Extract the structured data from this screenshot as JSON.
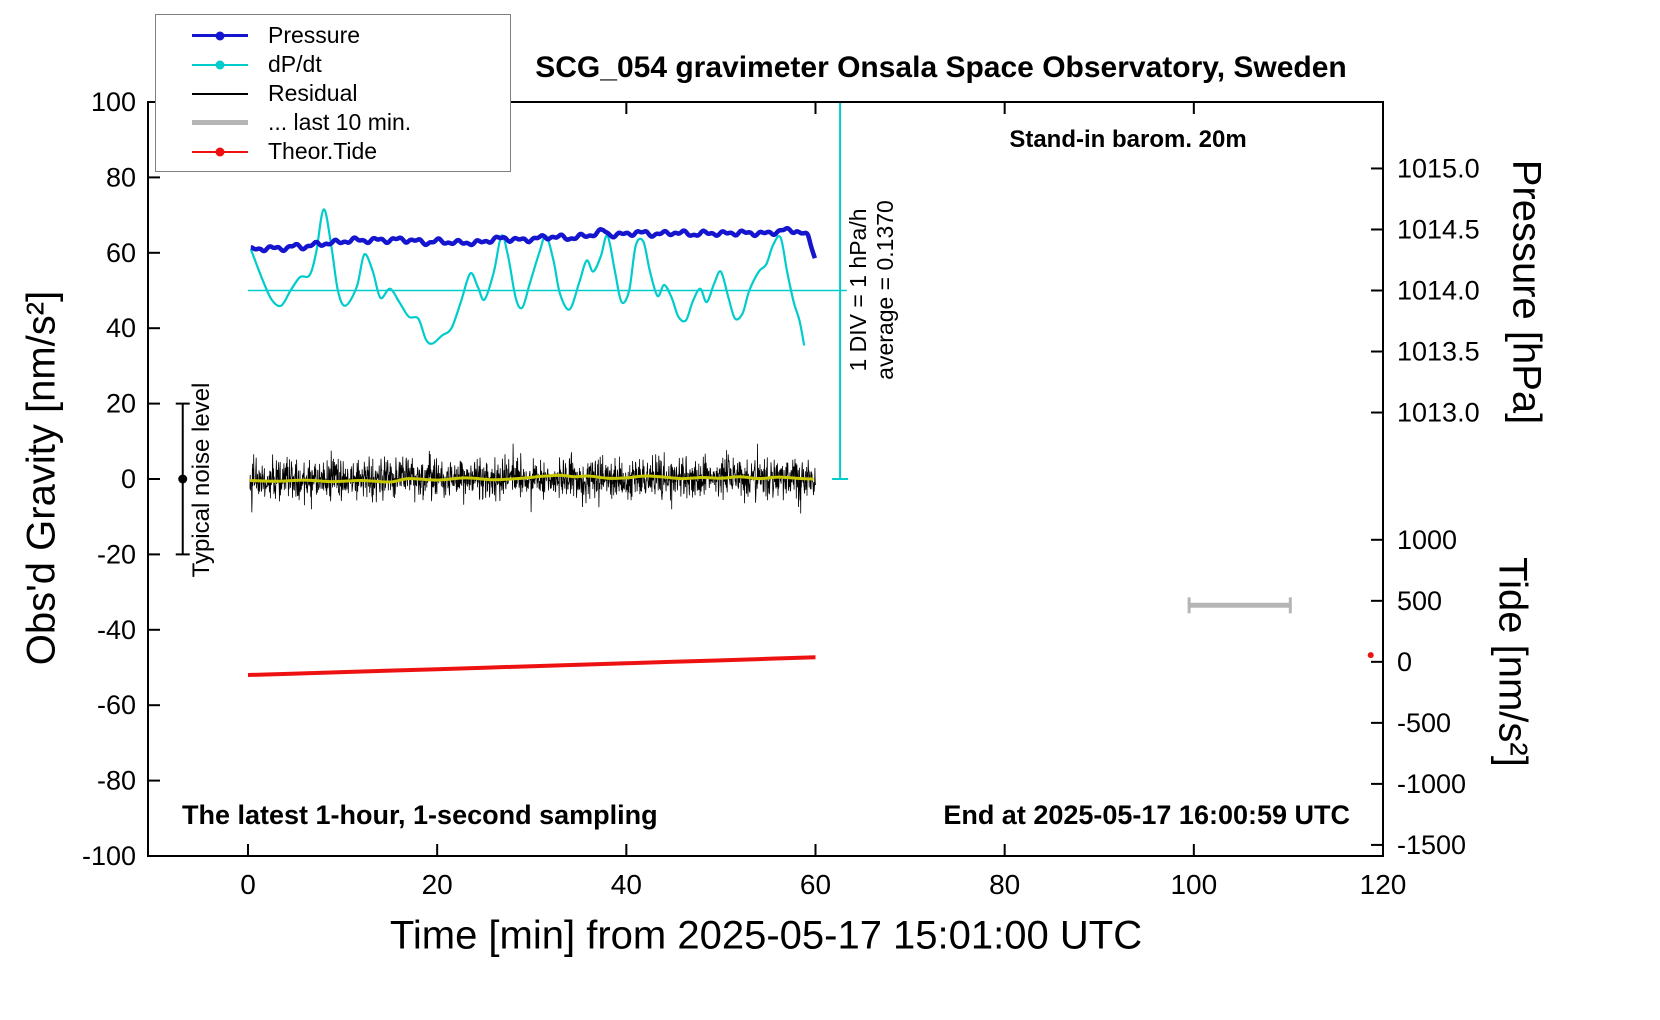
{
  "title": "SCG_054 gravimeter Onsala Space Observatory, Sweden",
  "annotations": {
    "barometer_note": "Stand-in barom. 20m",
    "div_note_line1": "1 DIV = 1 hPa/h",
    "div_note_line2": "average = 0.1370",
    "noise_label": "Typical noise level",
    "sampling_note": "The latest 1-hour, 1-second sampling",
    "end_note": "End at 2025-05-17 16:00:59 UTC"
  },
  "legend": {
    "items": [
      {
        "label": "Pressure",
        "color": "#1515d0",
        "dot": true,
        "thickness": 3
      },
      {
        "label": "dP/dt",
        "color": "#00cccc",
        "dot": true,
        "thickness": 2
      },
      {
        "label": "Residual",
        "color": "#000000",
        "dot": false,
        "thickness": 2
      },
      {
        "label": "... last 10 min.",
        "color": "#b5b5b5",
        "dot": false,
        "thickness": 5
      },
      {
        "label": "Theor.Tide",
        "color": "#ee1111",
        "dot": true,
        "thickness": 2
      }
    ]
  },
  "axes": {
    "x": {
      "label": "Time [min] from 2025-05-17 15:01:00 UTC",
      "ticks": [
        0,
        20,
        40,
        60,
        80,
        100,
        120
      ],
      "min": -10.6,
      "max": 120
    },
    "y_gravity": {
      "label": "Obs'd Gravity [nm/s²]",
      "ticks": [
        100,
        80,
        60,
        40,
        20,
        0,
        -20,
        -40,
        -60,
        -80,
        -100
      ],
      "min": -100,
      "max": 100
    },
    "y_pressure": {
      "label": "Pressure [hPa]",
      "ticks": [
        1015.0,
        1014.5,
        1014.0,
        1013.5,
        1013.0
      ],
      "cal": {
        "hpa_ref": 1014.0,
        "g_ref": 50,
        "g_per_hpa": 32.37
      }
    },
    "y_tide": {
      "label": "Tide [nm/s²]",
      "ticks": [
        1000,
        500,
        0,
        -500,
        -1000,
        -1500
      ],
      "cal": {
        "tide_ref": 0,
        "g_ref": -48.5,
        "g_per_unit": 0.032374
      }
    }
  },
  "chart_data": {
    "type": "line",
    "x_unit": "min",
    "grid": false,
    "series": [
      {
        "name": "pressure",
        "unit": "hPa",
        "color": "#1515d0",
        "points": [
          [
            0.3,
            1014.334
          ],
          [
            1,
            1014.337
          ],
          [
            2,
            1014.349
          ],
          [
            3,
            1014.343
          ],
          [
            4,
            1014.349
          ],
          [
            5,
            1014.364
          ],
          [
            6,
            1014.358
          ],
          [
            7,
            1014.374
          ],
          [
            8,
            1014.386
          ],
          [
            9,
            1014.389
          ],
          [
            10,
            1014.402
          ],
          [
            11,
            1014.411
          ],
          [
            12,
            1014.414
          ],
          [
            13,
            1014.408
          ],
          [
            14,
            1014.417
          ],
          [
            15,
            1014.411
          ],
          [
            16,
            1014.42
          ],
          [
            17,
            1014.414
          ],
          [
            18,
            1014.402
          ],
          [
            19,
            1014.392
          ],
          [
            20,
            1014.405
          ],
          [
            21,
            1014.399
          ],
          [
            22,
            1014.389
          ],
          [
            23,
            1014.395
          ],
          [
            24,
            1014.386
          ],
          [
            25,
            1014.402
          ],
          [
            26,
            1014.42
          ],
          [
            27,
            1014.429
          ],
          [
            28,
            1014.42
          ],
          [
            29,
            1014.411
          ],
          [
            30,
            1014.423
          ],
          [
            31,
            1014.432
          ],
          [
            32,
            1014.442
          ],
          [
            33,
            1014.436
          ],
          [
            34,
            1014.429
          ],
          [
            35,
            1014.439
          ],
          [
            36,
            1014.451
          ],
          [
            37,
            1014.473
          ],
          [
            37.6,
            1014.491
          ],
          [
            38.2,
            1014.46
          ],
          [
            39,
            1014.454
          ],
          [
            40,
            1014.463
          ],
          [
            41,
            1014.476
          ],
          [
            42,
            1014.47
          ],
          [
            43,
            1014.46
          ],
          [
            44,
            1014.466
          ],
          [
            45,
            1014.476
          ],
          [
            46,
            1014.47
          ],
          [
            47,
            1014.46
          ],
          [
            48,
            1014.466
          ],
          [
            49,
            1014.473
          ],
          [
            50,
            1014.463
          ],
          [
            51,
            1014.47
          ],
          [
            52,
            1014.476
          ],
          [
            53,
            1014.466
          ],
          [
            54,
            1014.473
          ],
          [
            55,
            1014.463
          ],
          [
            55.8,
            1014.482
          ],
          [
            56.5,
            1014.497
          ],
          [
            57.2,
            1014.488
          ],
          [
            58,
            1014.491
          ],
          [
            58.6,
            1014.473
          ],
          [
            59.2,
            1014.439
          ],
          [
            59.6,
            1014.355
          ],
          [
            60,
            1014.256
          ]
        ]
      },
      {
        "name": "dpdt",
        "unit": "hPa/h",
        "color": "#00cccc",
        "cal": {
          "zero_g": 50,
          "g_per_unit": 16.18
        },
        "zero_line": {
          "t_start": 0,
          "t_end": 63.3
        },
        "div_line": {
          "t": 62.6,
          "g_min": 0,
          "g_max": 100
        },
        "points": [
          [
            0.3,
            0.68
          ],
          [
            1.5,
            0.19
          ],
          [
            2.5,
            -0.15
          ],
          [
            3.5,
            -0.25
          ],
          [
            4.5,
            0.0
          ],
          [
            5.5,
            0.22
          ],
          [
            6.5,
            0.25
          ],
          [
            7.2,
            0.62
          ],
          [
            8.0,
            1.33
          ],
          [
            8.8,
            0.74
          ],
          [
            9.5,
            0.0
          ],
          [
            10.3,
            -0.25
          ],
          [
            11.5,
            0.06
          ],
          [
            12.3,
            0.59
          ],
          [
            13.2,
            0.31
          ],
          [
            14.0,
            -0.12
          ],
          [
            15.0,
            0.03
          ],
          [
            16.0,
            -0.19
          ],
          [
            17.0,
            -0.43
          ],
          [
            18.0,
            -0.46
          ],
          [
            18.8,
            -0.8
          ],
          [
            19.5,
            -0.87
          ],
          [
            20.5,
            -0.74
          ],
          [
            21.5,
            -0.62
          ],
          [
            22.5,
            -0.19
          ],
          [
            23.5,
            0.28
          ],
          [
            24.3,
            0.06
          ],
          [
            25.0,
            -0.15
          ],
          [
            26.0,
            0.31
          ],
          [
            26.8,
            0.9
          ],
          [
            27.5,
            0.56
          ],
          [
            28.3,
            -0.12
          ],
          [
            29.0,
            -0.28
          ],
          [
            29.8,
            0.12
          ],
          [
            30.8,
            0.62
          ],
          [
            31.5,
            0.9
          ],
          [
            32.3,
            0.49
          ],
          [
            33.0,
            -0.06
          ],
          [
            34.0,
            -0.31
          ],
          [
            35.0,
            0.12
          ],
          [
            35.8,
            0.49
          ],
          [
            36.5,
            0.31
          ],
          [
            37.3,
            0.56
          ],
          [
            38.0,
            0.9
          ],
          [
            38.8,
            0.31
          ],
          [
            39.5,
            -0.19
          ],
          [
            40.3,
            0.0
          ],
          [
            41.0,
            0.74
          ],
          [
            41.8,
            0.8
          ],
          [
            42.5,
            0.31
          ],
          [
            43.3,
            -0.09
          ],
          [
            44.0,
            0.09
          ],
          [
            44.8,
            -0.12
          ],
          [
            45.5,
            -0.43
          ],
          [
            46.3,
            -0.49
          ],
          [
            47.0,
            -0.19
          ],
          [
            47.8,
            0.03
          ],
          [
            48.5,
            -0.19
          ],
          [
            49.3,
            0.12
          ],
          [
            50.0,
            0.31
          ],
          [
            50.8,
            -0.12
          ],
          [
            51.5,
            -0.46
          ],
          [
            52.3,
            -0.37
          ],
          [
            53.0,
            0.0
          ],
          [
            54.0,
            0.31
          ],
          [
            54.8,
            0.43
          ],
          [
            55.5,
            0.74
          ],
          [
            56.3,
            0.87
          ],
          [
            57.0,
            0.31
          ],
          [
            57.7,
            -0.19
          ],
          [
            58.3,
            -0.49
          ],
          [
            58.8,
            -0.9
          ]
        ]
      },
      {
        "name": "residual",
        "unit": "nm/s2",
        "color": "#000000",
        "noise": {
          "mean": 0,
          "std": 2.7,
          "spike_prob": 0.003,
          "spike_min": 7,
          "spike_max": 12,
          "t_start": 0.2,
          "t_end": 60,
          "samples_per_min": 30,
          "seed": 42
        }
      },
      {
        "name": "residual_smooth",
        "unit": "nm/s2",
        "color": "#c8c800",
        "points": [
          [
            0.2,
            -0.4
          ],
          [
            3,
            -0.6
          ],
          [
            6,
            -0.3
          ],
          [
            9,
            -0.7
          ],
          [
            12,
            -0.4
          ],
          [
            15,
            -0.8
          ],
          [
            17,
            0.1
          ],
          [
            20,
            -0.3
          ],
          [
            23,
            0.3
          ],
          [
            26,
            -0.2
          ],
          [
            29,
            0.2
          ],
          [
            31,
            0.7
          ],
          [
            33,
            1.0
          ],
          [
            34.5,
            0.6
          ],
          [
            36,
            0.8
          ],
          [
            38,
            0.2
          ],
          [
            40,
            0.3
          ],
          [
            42,
            0.8
          ],
          [
            44,
            0.5
          ],
          [
            46,
            0.1
          ],
          [
            48,
            0.4
          ],
          [
            50,
            0.2
          ],
          [
            52,
            0.6
          ],
          [
            54,
            0.1
          ],
          [
            56,
            0.5
          ],
          [
            58,
            0.2
          ],
          [
            59.8,
            0.0
          ]
        ]
      },
      {
        "name": "last10_marker",
        "color": "#b5b5b5",
        "bar": {
          "t_start": 99.5,
          "t_end": 110.2,
          "g": -33.5
        }
      },
      {
        "name": "theor_tide",
        "unit": "nm/s2 (tide axis)",
        "color": "#ee1111",
        "points": [
          [
            0,
            -108
          ],
          [
            5,
            -96
          ],
          [
            10,
            -84
          ],
          [
            15,
            -72
          ],
          [
            20,
            -60
          ],
          [
            25,
            -48
          ],
          [
            30,
            -36
          ],
          [
            35,
            -24
          ],
          [
            40,
            -12
          ],
          [
            45,
            0
          ],
          [
            50,
            12
          ],
          [
            55,
            25
          ],
          [
            60,
            37
          ]
        ],
        "latest_point": {
          "t": 118.7,
          "value": 55
        }
      }
    ],
    "noise_marker": {
      "t": -6.9,
      "g_min": -20,
      "g_max": 20,
      "dot_g": 0
    }
  }
}
